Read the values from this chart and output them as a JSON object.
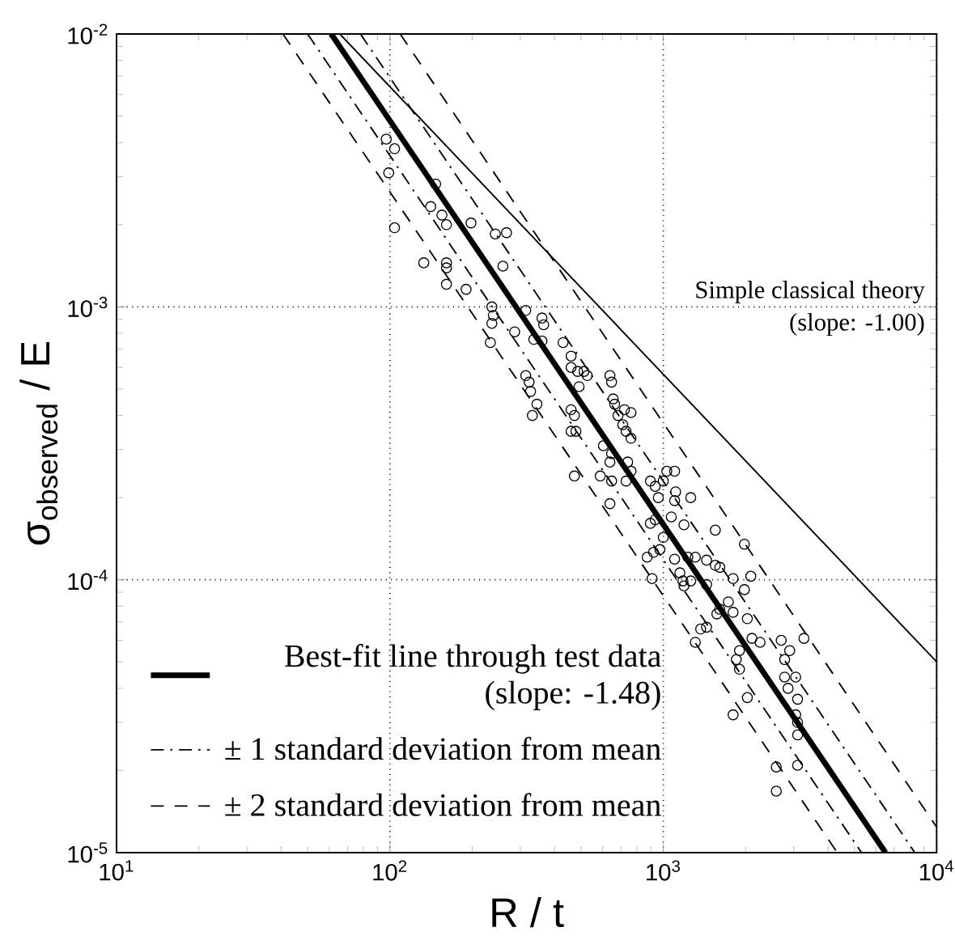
{
  "chart_data": {
    "type": "line",
    "xlabel": "R / t",
    "ylabel": "σ$_{observed}$ / E",
    "log": "xy",
    "grid": true,
    "legend": "bottom left",
    "xlim": [
      10,
      10000
    ],
    "ylim": [
      1e-05,
      0.01
    ],
    "xticks": [
      {
        "value": 10,
        "label": "10$^{1}$"
      },
      {
        "value": 100,
        "label": "10$^{2}$"
      },
      {
        "value": 1000,
        "label": "10$^{3}$"
      },
      {
        "value": 10000,
        "label": "10$^{4}$"
      }
    ],
    "yticks": [
      {
        "value": 1e-05,
        "label": "10$^{-5}$"
      },
      {
        "value": 0.0001,
        "label": "10$^{-4}$"
      },
      {
        "value": 0.001,
        "label": "10$^{-3}$"
      },
      {
        "value": 0.01,
        "label": "10$^{-2}$"
      }
    ],
    "annotations": [
      "Simple classical theory (slope: -1.00)"
    ],
    "series": [
      {
        "type": "scatter",
        "marker": "circle",
        "color": "#000000",
        "x": [
          97,
          104,
          99,
          147,
          141,
          155,
          161,
          198,
          104,
          133,
          161,
          161,
          161,
          190,
          243,
          267,
          259,
          236,
          239,
          236,
          233,
          286,
          314,
          360,
          365,
          336,
          360,
          430,
          460,
          460,
          486,
          513,
          527,
          492,
          638,
          647,
          656,
          664,
          314,
          323,
          327,
          345,
          332,
          460,
          473,
          460,
          479,
          721,
          762,
          683,
          711,
          731,
          762,
          604,
          647,
          638,
          741,
          762,
          731,
          473,
          588,
          647,
          638,
          897,
          934,
          1000,
          1100,
          1030,
          1110,
          959,
          1100,
          1260,
          934,
          1070,
          897,
          1190,
          1550,
          1000,
          1980,
          873,
          921,
          972,
          910,
          1100,
          1230,
          1310,
          1440,
          1550,
          1610,
          1150,
          1180,
          1260,
          1190,
          1440,
          1800,
          1980,
          2090,
          1310,
          1370,
          1440,
          1570,
          1610,
          1730,
          1800,
          2030,
          2110,
          2260,
          1900,
          1850,
          1900,
          2030,
          1800,
          2700,
          2900,
          2780,
          3270,
          2780,
          3050,
          2860,
          3100,
          3050,
          3100,
          3100,
          2590,
          3100,
          2590
        ],
        "values": [
          0.00412,
          0.0038,
          0.0031,
          0.00282,
          0.00233,
          0.00217,
          0.002,
          0.00203,
          0.00195,
          0.00145,
          0.00145,
          0.00139,
          0.00121,
          0.00116,
          0.00185,
          0.00187,
          0.00141,
          0.001,
          0.00093,
          0.00087,
          0.00074,
          0.00081,
          0.00097,
          0.00091,
          0.00086,
          0.00076,
          0.00075,
          0.00074,
          0.00066,
          0.0006,
          0.00058,
          0.00058,
          0.00056,
          0.00051,
          0.00056,
          0.00053,
          0.00046,
          0.00044,
          0.00056,
          0.00053,
          0.00049,
          0.00044,
          0.0004,
          0.00042,
          0.0004,
          0.00035,
          0.00035,
          0.00042,
          0.00041,
          0.0004,
          0.00037,
          0.00035,
          0.00033,
          0.00031,
          0.00029,
          0.00027,
          0.00027,
          0.00025,
          0.00023,
          0.00024,
          0.00024,
          0.00023,
          0.00019,
          0.00023,
          0.00022,
          0.00023,
          0.00025,
          0.00025,
          0.00021,
          0.0002,
          0.000195,
          0.0002,
          0.000166,
          0.00017,
          0.000161,
          0.000159,
          0.000152,
          0.000143,
          0.000135,
          0.000121,
          0.000126,
          0.000129,
          0.000101,
          0.000119,
          0.000121,
          0.000121,
          0.000118,
          0.000113,
          0.000111,
          0.000106,
          9.9e-05,
          9.9e-05,
          9.5e-05,
          9.6e-05,
          0.000101,
          9.2e-05,
          0.000103,
          5.9e-05,
          6.6e-05,
          6.7e-05,
          7.5e-05,
          7.8e-05,
          8.3e-05,
          7.6e-05,
          7.2e-05,
          6.1e-05,
          5.9e-05,
          5.5e-05,
          5.1e-05,
          4.7e-05,
          3.7e-05,
          3.2e-05,
          6e-05,
          5.5e-05,
          5.1e-05,
          6.1e-05,
          4.4e-05,
          4.4e-05,
          4e-05,
          3.65e-05,
          3.2e-05,
          3e-05,
          2.7e-05,
          2.06e-05,
          2.09e-05,
          1.68e-05
        ]
      },
      {
        "name": "Best-fit line through test data (slope: -1.48)",
        "color": "#000000",
        "line_style": "solid",
        "x": [
          61,
          6500
        ],
        "values": [
          0.01,
          1e-05
        ]
      },
      {
        "name": "± 1 standard deviation from mean",
        "color": "#000000",
        "line_style": "dashdot",
        "x": [
          78,
          8320
        ],
        "values": [
          0.01,
          1e-05
        ]
      },
      {
        "color": "#000000",
        "line_style": "dashdot",
        "x": [
          50,
          5310
        ],
        "values": [
          0.01,
          1e-05
        ]
      },
      {
        "name": "± 2 standard deviation from mean",
        "color": "#000000",
        "line_style": "dashed",
        "x": [
          109,
          10000
        ],
        "values": [
          0.01,
          1.24e-05
        ]
      },
      {
        "color": "#000000",
        "line_style": "dashed",
        "x": [
          40.6,
          4330
        ],
        "values": [
          0.01,
          1e-05
        ]
      },
      {
        "color": "#000000",
        "line_style": "solid",
        "x": [
          65.6,
          10000
        ],
        "values": [
          0.01,
          5e-05
        ]
      }
    ]
  }
}
